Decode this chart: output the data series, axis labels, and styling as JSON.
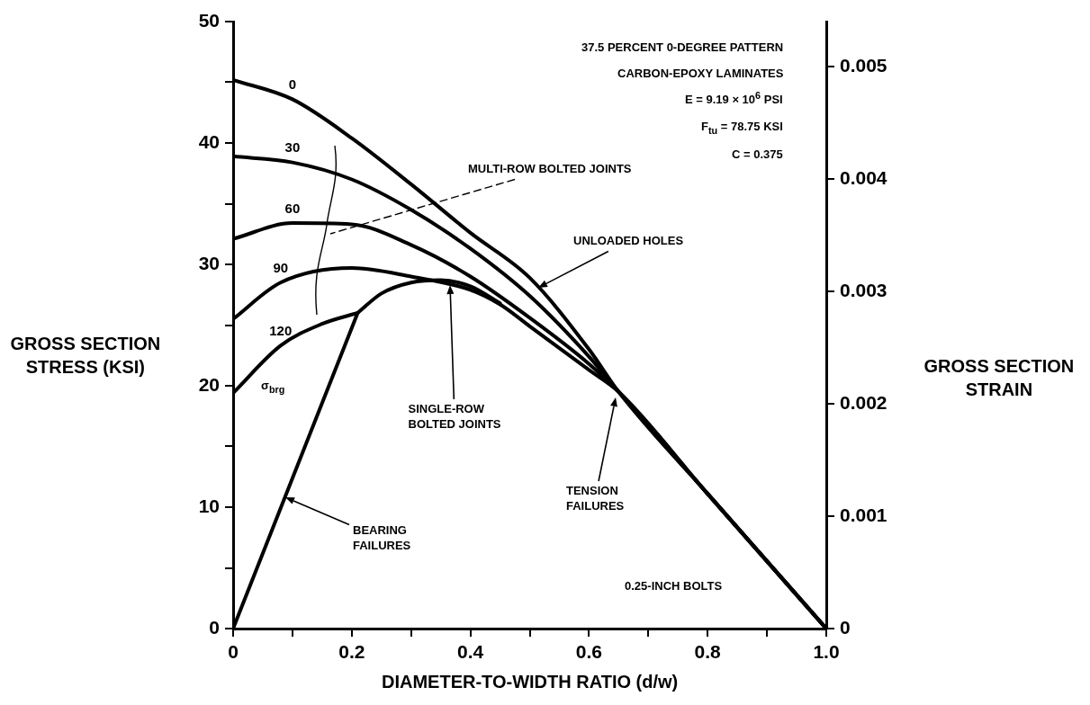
{
  "chart_data": {
    "type": "line",
    "xlabel": "DIAMETER-TO-WIDTH RATIO (d/w)",
    "ylabel": "GROSS SECTION\nSTRESS (KSI)",
    "y2label": "GROSS SECTION\nSTRAIN",
    "xlim": [
      0,
      1
    ],
    "xticks": [
      0,
      {
        "value": 0.1,
        "label": null
      },
      0.2,
      {
        "value": 0.3,
        "label": null
      },
      0.4,
      {
        "value": 0.5,
        "label": null
      },
      0.6,
      {
        "value": 0.7,
        "label": null
      },
      0.8,
      {
        "value": 0.9,
        "label": null
      },
      {
        "value": 1,
        "label": "1.0"
      }
    ],
    "ylim": [
      0,
      50
    ],
    "yticks": [
      0,
      {
        "value": 5,
        "label": null
      },
      10,
      {
        "value": 15,
        "label": null
      },
      20,
      {
        "value": 25,
        "label": null
      },
      30,
      {
        "value": 35,
        "label": null
      },
      40,
      {
        "value": 45,
        "label": null
      },
      50
    ],
    "y2lim": [
      0,
      0.0054
    ],
    "y2ticks": [
      0,
      0.001,
      0.002,
      0.003,
      0.004,
      0.005
    ],
    "marker": "none",
    "line_style": "solid",
    "series": [
      {
        "name": "0",
        "color": "#000000",
        "x": [
          0,
          0.1,
          0.2,
          0.3,
          0.4,
          0.5,
          0.6,
          0.65,
          0.8,
          1
        ],
        "values": [
          45.2,
          43.6,
          40.4,
          36.6,
          32.6,
          28.9,
          23,
          19.5,
          11.1,
          0
        ]
      },
      {
        "name": "30",
        "color": "#000000",
        "x": [
          0,
          0.1,
          0.2,
          0.3,
          0.4,
          0.5,
          0.6,
          0.65,
          0.8,
          1
        ],
        "values": [
          38.9,
          38.4,
          37,
          34.5,
          31.3,
          27.4,
          22.4,
          19.5,
          11.1,
          0
        ]
      },
      {
        "name": "60",
        "color": "#000000",
        "x": [
          0,
          0.1,
          0.2,
          0.3,
          0.4,
          0.5,
          0.6,
          0.65,
          0.8,
          1
        ],
        "values": [
          32.1,
          33.4,
          33.3,
          31.6,
          29,
          25.6,
          21.8,
          19.5,
          11.1,
          0
        ]
      },
      {
        "name": "90",
        "color": "#000000",
        "x": [
          0,
          0.08,
          0.2,
          0.3,
          0.4,
          0.45,
          0.5,
          0.6,
          0.65,
          0.8,
          1
        ],
        "values": [
          25.5,
          28.5,
          29.7,
          29,
          27.9,
          26.7,
          24.9,
          21.3,
          19.5,
          11.1,
          0
        ]
      },
      {
        "name": "120",
        "color": "#000000",
        "x": [
          0,
          0.08,
          0.15,
          0.21
        ],
        "values": [
          19.4,
          23.3,
          25.1,
          26
        ]
      },
      {
        "color": "#000000",
        "x": [
          0.21,
          0.25,
          0.3,
          0.35,
          0.4,
          0.45
        ],
        "values": [
          26,
          27.6,
          28.5,
          28.7,
          28.2,
          26.8
        ]
      },
      {
        "color": "#000000",
        "x": [
          0,
          0.21
        ],
        "values": [
          0,
          26
        ]
      }
    ],
    "annotations": [
      "37.5 PERCENT 0-DEGREE PATTERN",
      "CARBON-EPOXY LAMINATES",
      "E = 9.19 × 10$^{6}$ PSI",
      "F$_{tu}$ = 78.75 KSI",
      "C = 0.375",
      "MULTI-ROW BOLTED JOINTS",
      "UNLOADED HOLES",
      "SINGLE-ROW\nBOLTED JOINTS",
      "TENSION\nFAILURES",
      "BEARING\nFAILURES",
      "σ$_{brg}$",
      "0.25-INCH BOLTS"
    ]
  }
}
